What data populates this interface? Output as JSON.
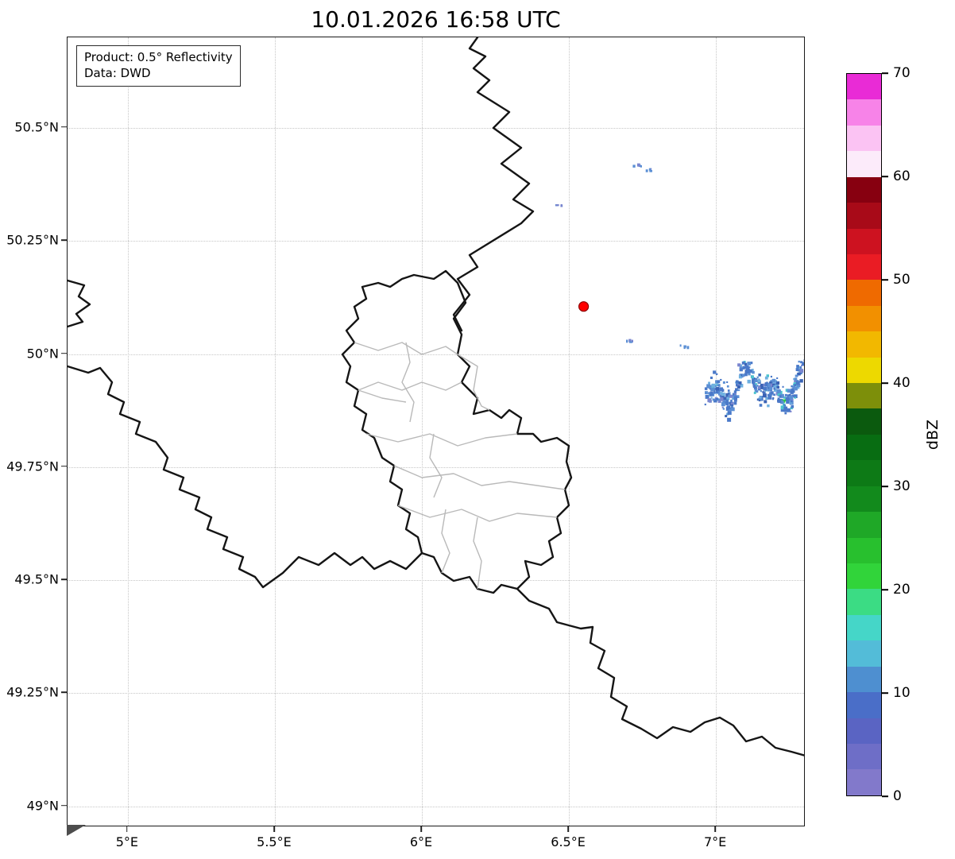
{
  "title": "10.01.2026 16:58 UTC",
  "info_box": {
    "product_line": "Product: 0.5° Reflectivity",
    "data_line": "Data: DWD"
  },
  "colorbar": {
    "label": "dBZ",
    "min": 0,
    "max": 70,
    "tick_values": [
      0,
      10,
      20,
      30,
      40,
      50,
      60,
      70
    ],
    "band_colors_bottom_to_top": [
      "#8279cb",
      "#6e6ec7",
      "#5a64c3",
      "#4a6ec8",
      "#4e8fd0",
      "#53bcd8",
      "#45d6c8",
      "#3bdc84",
      "#31d43a",
      "#28c02e",
      "#1fa827",
      "#128a1c",
      "#0d7a16",
      "#086d12",
      "#0b5a0e",
      "#7d8f0a",
      "#edd900",
      "#f2b800",
      "#f29000",
      "#ef6a00",
      "#ea1c24",
      "#cd1220",
      "#a80a18",
      "#870010",
      "#fcebfa",
      "#fbc3f3",
      "#f783e8",
      "#e92bd6"
    ]
  },
  "chart_data": {
    "type": "map",
    "title": "10.01.2026 16:58 UTC",
    "product": "0.5° Reflectivity",
    "data_source": "DWD",
    "units": "dBZ",
    "axes": {
      "lon_min": 4.795,
      "lon_max": 7.305,
      "lat_min": 48.954,
      "lat_max": 50.7,
      "x_ticks": [
        {
          "value": 5.0,
          "label": "5°E"
        },
        {
          "value": 5.5,
          "label": "5.5°E"
        },
        {
          "value": 6.0,
          "label": "6°E"
        },
        {
          "value": 6.5,
          "label": "6.5°E"
        },
        {
          "value": 7.0,
          "label": "7°E"
        }
      ],
      "y_ticks": [
        {
          "value": 49.0,
          "label": "49°N"
        },
        {
          "value": 49.25,
          "label": "49.25°N"
        },
        {
          "value": 49.5,
          "label": "49.5°N"
        },
        {
          "value": 49.75,
          "label": "49.75°N"
        },
        {
          "value": 50.0,
          "label": "50°N"
        },
        {
          "value": 50.25,
          "label": "50.25°N"
        },
        {
          "value": 50.5,
          "label": "50.5°N"
        }
      ],
      "grid": "dotted"
    },
    "radar_marker": {
      "lon": 6.55,
      "lat": 50.105,
      "color": "#ff0000"
    },
    "echoes": {
      "palette": [
        "#4a79c9",
        "#5b8fd4",
        "#3a63b5",
        "#6fb0e0",
        "#4cc4ce",
        "#2ecc47",
        "#7a86cf"
      ],
      "main_cluster": {
        "lon_min": 6.96,
        "lon_max": 7.31,
        "lat_min": 49.85,
        "lat_max": 49.99,
        "dbz_range": [
          0,
          25
        ]
      },
      "specks": [
        {
          "lon": 6.73,
          "lat": 50.42
        },
        {
          "lon": 6.765,
          "lat": 50.41
        },
        {
          "lon": 6.46,
          "lat": 50.33
        },
        {
          "lon": 6.7,
          "lat": 50.03
        },
        {
          "lon": 6.89,
          "lat": 50.02
        }
      ]
    },
    "map_features": [
      "national borders (Belgium, Germany, France, Luxembourg)",
      "Luxembourg district boundaries"
    ]
  }
}
